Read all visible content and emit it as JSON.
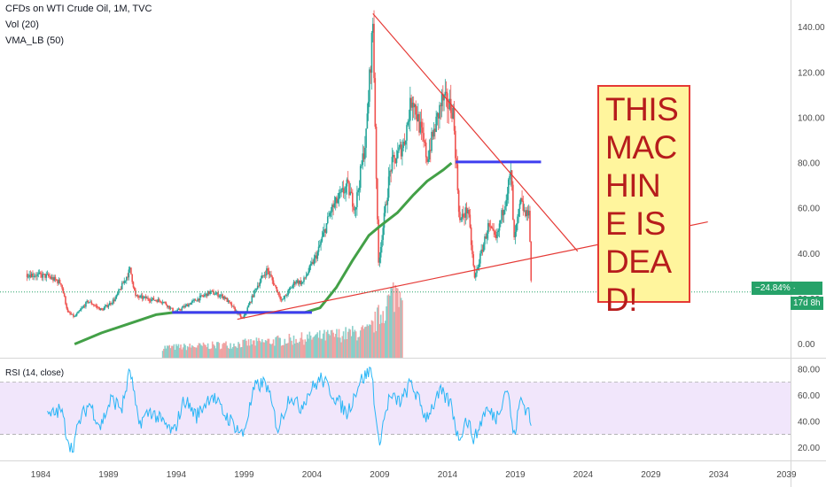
{
  "header": {
    "title": "CFDs on WTI Crude Oil, 1M, TVC",
    "volume_label": "Vol (20)",
    "vma_label": "VMA_LB (50)"
  },
  "rsi_label": "RSI (14, close)",
  "callout_lines": [
    "THIS",
    "MAC",
    "HIN",
    "E IS",
    "DEA",
    "D!"
  ],
  "price_badge": {
    "change": "−24.84%",
    "price": "23.02",
    "countdown": "17d 8h"
  },
  "colors": {
    "up": "#26a69a",
    "down": "#ef5350",
    "ma": "#43a047",
    "support": "#3d3df0",
    "trend": "#e53935",
    "rsi": "#29b6f6",
    "rsi_band": "#f1e6fb",
    "price_line": "#26a269"
  },
  "chart_data": [
    {
      "type": "candlestick",
      "title": "CFDs on WTI Crude Oil, 1M, TVC",
      "y_axis_ticks": [
        0,
        20,
        40,
        60,
        80,
        100,
        120,
        140
      ],
      "ylim": [
        -6,
        152
      ],
      "x_axis_ticks": [
        "1984",
        "1989",
        "1994",
        "1999",
        "2004",
        "2009",
        "2014",
        "2019",
        "2024",
        "2029",
        "2034",
        "2039"
      ],
      "xlim": [
        1981.0,
        2039.3
      ],
      "last_price": 23.02,
      "last_change_pct": -24.84,
      "price_path": [
        [
          1983.0,
          31
        ],
        [
          1984.5,
          30
        ],
        [
          1985.5,
          27
        ],
        [
          1986.0,
          14
        ],
        [
          1986.5,
          12
        ],
        [
          1987.5,
          19
        ],
        [
          1988.5,
          15
        ],
        [
          1989.5,
          20
        ],
        [
          1990.6,
          33
        ],
        [
          1991.0,
          21
        ],
        [
          1992.0,
          20
        ],
        [
          1993.0,
          19
        ],
        [
          1993.9,
          14
        ],
        [
          1995.0,
          18
        ],
        [
          1996.5,
          23
        ],
        [
          1997.5,
          21
        ],
        [
          1998.9,
          11
        ],
        [
          1999.9,
          25
        ],
        [
          2000.7,
          33
        ],
        [
          2001.8,
          19
        ],
        [
          2002.8,
          28
        ],
        [
          2003.3,
          27
        ],
        [
          2004.4,
          40
        ],
        [
          2005.4,
          59
        ],
        [
          2006.6,
          70
        ],
        [
          2007.2,
          60
        ],
        [
          2008.0,
          92
        ],
        [
          2008.5,
          142
        ],
        [
          2008.9,
          35
        ],
        [
          2009.8,
          78
        ],
        [
          2010.8,
          89
        ],
        [
          2011.4,
          110
        ],
        [
          2012.5,
          82
        ],
        [
          2013.6,
          108
        ],
        [
          2014.4,
          104
        ],
        [
          2014.9,
          54
        ],
        [
          2015.5,
          60
        ],
        [
          2016.0,
          29
        ],
        [
          2017.0,
          52
        ],
        [
          2017.6,
          46
        ],
        [
          2018.7,
          76
        ],
        [
          2018.9,
          45
        ],
        [
          2019.4,
          63
        ],
        [
          2019.8,
          56
        ],
        [
          2020.0,
          61
        ],
        [
          2020.2,
          22
        ]
      ],
      "vma_lb": [
        [
          1986.5,
          0
        ],
        [
          1988.5,
          5
        ],
        [
          1990.5,
          9
        ],
        [
          1992.5,
          13
        ],
        [
          1993.8,
          14
        ],
        [
          1999.0,
          14
        ],
        [
          2003.5,
          14
        ],
        [
          2004.6,
          16
        ],
        [
          2005.8,
          25
        ],
        [
          2007.0,
          37
        ],
        [
          2008.2,
          48
        ],
        [
          2009.0,
          52
        ],
        [
          2010.3,
          58
        ],
        [
          2011.5,
          66
        ],
        [
          2012.5,
          72
        ],
        [
          2013.7,
          77
        ],
        [
          2014.3,
          80
        ]
      ],
      "support_lines": [
        {
          "x": [
            1993.7,
            2004.0
          ],
          "y": 14
        },
        {
          "x": [
            2014.6,
            2020.9
          ],
          "y": 80.5
        }
      ],
      "trend_lines": [
        {
          "from": [
            2008.5,
            146
          ],
          "to": [
            2023.6,
            41
          ]
        },
        {
          "from": [
            1998.5,
            11
          ],
          "to": [
            2033.2,
            54
          ]
        }
      ],
      "volume_span": [
        1993.0,
        2010.7
      ]
    },
    {
      "type": "line",
      "title": "RSI (14, close)",
      "y_axis_ticks": [
        20,
        40,
        60,
        80
      ],
      "ylim": [
        10,
        88
      ],
      "band": [
        30,
        70
      ],
      "rsi_path": [
        [
          1984.5,
          43
        ],
        [
          1985.5,
          49
        ],
        [
          1985.9,
          31
        ],
        [
          1986.3,
          18
        ],
        [
          1986.9,
          41
        ],
        [
          1987.6,
          54
        ],
        [
          1988.4,
          36
        ],
        [
          1989.2,
          57
        ],
        [
          1990.0,
          50
        ],
        [
          1990.6,
          80
        ],
        [
          1991.2,
          38
        ],
        [
          1992.1,
          48
        ],
        [
          1992.9,
          40
        ],
        [
          1993.8,
          31
        ],
        [
          1994.6,
          57
        ],
        [
          1995.5,
          44
        ],
        [
          1996.6,
          61
        ],
        [
          1997.5,
          46
        ],
        [
          1998.4,
          36
        ],
        [
          1998.9,
          29
        ],
        [
          1999.8,
          66
        ],
        [
          2000.6,
          70
        ],
        [
          2001.5,
          34
        ],
        [
          2002.4,
          61
        ],
        [
          2003.1,
          50
        ],
        [
          2003.9,
          64
        ],
        [
          2004.7,
          73
        ],
        [
          2005.6,
          60
        ],
        [
          2006.6,
          46
        ],
        [
          2007.5,
          70
        ],
        [
          2008.4,
          80
        ],
        [
          2008.9,
          22
        ],
        [
          2009.7,
          58
        ],
        [
          2010.6,
          55
        ],
        [
          2011.3,
          70
        ],
        [
          2012.4,
          43
        ],
        [
          2013.5,
          62
        ],
        [
          2014.3,
          53
        ],
        [
          2014.8,
          26
        ],
        [
          2015.4,
          42
        ],
        [
          2016.0,
          26
        ],
        [
          2016.8,
          49
        ],
        [
          2017.6,
          43
        ],
        [
          2018.4,
          67
        ],
        [
          2018.9,
          27
        ],
        [
          2019.4,
          58
        ],
        [
          2019.9,
          47
        ],
        [
          2020.0,
          53
        ],
        [
          2020.2,
          29
        ]
      ]
    }
  ]
}
